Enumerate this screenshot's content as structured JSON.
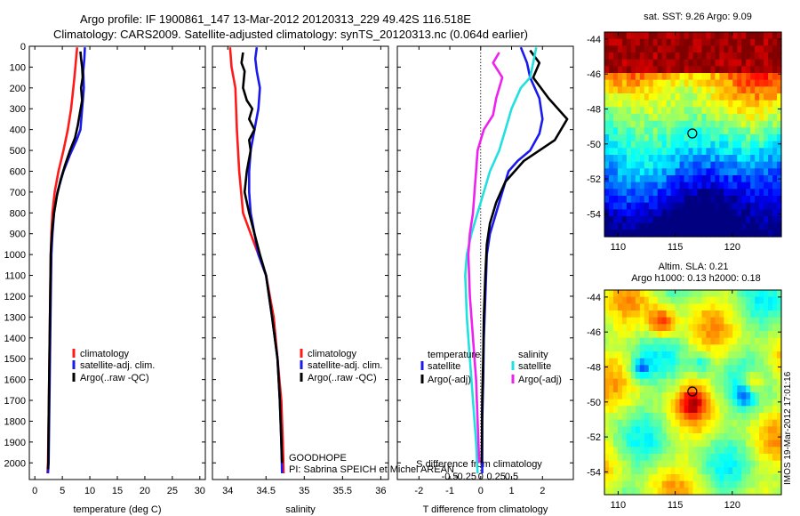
{
  "header": {
    "line1": "Argo profile: IF 1900861_147 13-Mar-2012 20120313_229 49.42S 116.518E",
    "line2": "Climatology: CARS2009. Satellite-adjusted climatology: synTS_20120313.nc (0.064d earlier)"
  },
  "annotations": {
    "project": "GOODHOPE",
    "pi": "PI: Sabrina SPEICH et Michel AREAN",
    "credit": "IMOS 19-Mar-2012 17:01:16"
  },
  "colors": {
    "climatology": "#ff1a1a",
    "satellite": "#1a1aee",
    "argo": "#000000",
    "sal_satellite": "#22e0e0",
    "sal_argo": "#ee22ee"
  },
  "chart_data": [
    {
      "type": "line",
      "id": "temperature",
      "xlabel": "temperature (deg C)",
      "xlim": [
        -1,
        31
      ],
      "ylim": [
        2080,
        0
      ],
      "xticks": [
        0,
        5,
        10,
        15,
        20,
        25,
        30
      ],
      "yticks": [
        0,
        100,
        200,
        300,
        400,
        500,
        600,
        700,
        800,
        900,
        1000,
        1100,
        1200,
        1300,
        1400,
        1500,
        1600,
        1700,
        1800,
        1900,
        2000
      ],
      "legend": [
        "climatology",
        "satellite-adj. clim.",
        "Argo(..raw -QC)"
      ],
      "series": [
        {
          "name": "climatology",
          "color": "#ff1a1a",
          "points": [
            [
              7.7,
              5
            ],
            [
              7.5,
              60
            ],
            [
              7.3,
              120
            ],
            [
              7.0,
              200
            ],
            [
              6.6,
              300
            ],
            [
              6.0,
              400
            ],
            [
              5.2,
              500
            ],
            [
              4.3,
              600
            ],
            [
              3.6,
              700
            ],
            [
              3.2,
              800
            ],
            [
              3.0,
              900
            ],
            [
              2.9,
              1000
            ],
            [
              2.8,
              1200
            ],
            [
              2.7,
              1400
            ],
            [
              2.6,
              1600
            ],
            [
              2.5,
              1800
            ],
            [
              2.4,
              2000
            ],
            [
              2.3,
              2050
            ]
          ]
        },
        {
          "name": "satellite-adj. clim.",
          "color": "#1a1aee",
          "points": [
            [
              9.1,
              5
            ],
            [
              9.0,
              60
            ],
            [
              8.8,
              120
            ],
            [
              8.9,
              200
            ],
            [
              8.6,
              300
            ],
            [
              8.3,
              400
            ],
            [
              7.6,
              450
            ],
            [
              6.4,
              520
            ],
            [
              5.2,
              600
            ],
            [
              4.1,
              700
            ],
            [
              3.5,
              800
            ],
            [
              3.2,
              900
            ],
            [
              3.0,
              1000
            ],
            [
              2.9,
              1200
            ],
            [
              2.8,
              1400
            ],
            [
              2.7,
              1600
            ],
            [
              2.6,
              1800
            ],
            [
              2.5,
              2000
            ],
            [
              2.4,
              2050
            ]
          ]
        },
        {
          "name": "Argo(..raw -QC)",
          "color": "#000000",
          "points": [
            [
              8.3,
              25
            ],
            [
              8.4,
              60
            ],
            [
              8.6,
              100
            ],
            [
              8.7,
              150
            ],
            [
              8.4,
              200
            ],
            [
              8.6,
              260
            ],
            [
              8.2,
              320
            ],
            [
              7.8,
              380
            ],
            [
              7.3,
              440
            ],
            [
              6.4,
              500
            ],
            [
              5.5,
              570
            ],
            [
              4.7,
              640
            ],
            [
              4.0,
              720
            ],
            [
              3.5,
              800
            ],
            [
              3.1,
              900
            ],
            [
              2.9,
              1000
            ],
            [
              2.8,
              1200
            ],
            [
              2.7,
              1400
            ],
            [
              2.6,
              1600
            ],
            [
              2.5,
              1800
            ],
            [
              2.45,
              2000
            ],
            [
              2.4,
              2030
            ]
          ]
        }
      ]
    },
    {
      "type": "line",
      "id": "salinity",
      "xlabel": "salinity",
      "xlim": [
        33.8,
        36.1
      ],
      "ylim": [
        2080,
        0
      ],
      "xticks": [
        34,
        34.5,
        35,
        35.5,
        36
      ],
      "legend": [
        "climatology",
        "satellite-adj. clim.",
        "Argo(..raw -QC)"
      ],
      "series": [
        {
          "name": "climatology",
          "color": "#ff1a1a",
          "points": [
            [
              34.03,
              5
            ],
            [
              34.05,
              100
            ],
            [
              34.1,
              200
            ],
            [
              34.12,
              400
            ],
            [
              34.15,
              600
            ],
            [
              34.2,
              800
            ],
            [
              34.3,
              900
            ],
            [
              34.4,
              1000
            ],
            [
              34.5,
              1100
            ],
            [
              34.6,
              1300
            ],
            [
              34.65,
              1500
            ],
            [
              34.7,
              1700
            ],
            [
              34.72,
              1900
            ],
            [
              34.73,
              2050
            ]
          ]
        },
        {
          "name": "satellite-adj. clim.",
          "color": "#1a1aee",
          "points": [
            [
              34.38,
              5
            ],
            [
              34.36,
              60
            ],
            [
              34.38,
              120
            ],
            [
              34.42,
              200
            ],
            [
              34.4,
              300
            ],
            [
              34.35,
              400
            ],
            [
              34.3,
              500
            ],
            [
              34.28,
              600
            ],
            [
              34.28,
              700
            ],
            [
              34.3,
              800
            ],
            [
              34.35,
              900
            ],
            [
              34.4,
              1000
            ],
            [
              34.5,
              1100
            ],
            [
              34.58,
              1300
            ],
            [
              34.65,
              1500
            ],
            [
              34.68,
              1700
            ],
            [
              34.7,
              1900
            ],
            [
              34.71,
              2050
            ]
          ]
        },
        {
          "name": "Argo(..raw -QC)",
          "color": "#000000",
          "points": [
            [
              34.2,
              30
            ],
            [
              34.18,
              80
            ],
            [
              34.22,
              120
            ],
            [
              34.2,
              200
            ],
            [
              34.25,
              260
            ],
            [
              34.32,
              300
            ],
            [
              34.28,
              350
            ],
            [
              34.35,
              400
            ],
            [
              34.28,
              450
            ],
            [
              34.3,
              500
            ],
            [
              34.25,
              600
            ],
            [
              34.22,
              700
            ],
            [
              34.28,
              800
            ],
            [
              34.35,
              900
            ],
            [
              34.42,
              1000
            ],
            [
              34.5,
              1100
            ],
            [
              34.58,
              1300
            ],
            [
              34.65,
              1500
            ],
            [
              34.68,
              1700
            ],
            [
              34.7,
              1900
            ],
            [
              34.71,
              2000
            ]
          ]
        }
      ]
    },
    {
      "type": "line",
      "id": "difference",
      "xlabel": "T difference from climatology",
      "xlabel2": "S difference from climatology",
      "xlim": [
        -2.7,
        3.0
      ],
      "ylim": [
        2080,
        0
      ],
      "xticks": [
        -2,
        -1,
        0,
        1,
        2
      ],
      "xticks2": [
        -0.5,
        -0.25,
        0,
        0.25,
        0.5
      ],
      "xticks2_labels": [
        "-0.5",
        "-0.25",
        "0",
        "0.25",
        "0.5"
      ],
      "legend_headers": [
        "temperature",
        "salinity"
      ],
      "legend": [
        "satellite",
        "Argo(-adj)",
        "satellite",
        "Argo(-adj)"
      ],
      "series": [
        {
          "name": "satellite",
          "color": "#1a1aee",
          "points": [
            [
              1.3,
              5
            ],
            [
              1.5,
              80
            ],
            [
              1.6,
              150
            ],
            [
              1.9,
              250
            ],
            [
              2.0,
              350
            ],
            [
              1.9,
              420
            ],
            [
              1.6,
              500
            ],
            [
              1.2,
              550
            ],
            [
              0.9,
              600
            ],
            [
              0.7,
              700
            ],
            [
              0.5,
              800
            ],
            [
              0.3,
              900
            ],
            [
              0.2,
              1000
            ],
            [
              0.15,
              1200
            ],
            [
              0.1,
              1400
            ],
            [
              0.08,
              1600
            ],
            [
              0.05,
              1800
            ],
            [
              0.05,
              2000
            ],
            [
              0.05,
              2050
            ]
          ]
        },
        {
          "name": "Argo(-adj)",
          "color": "#000000",
          "points": [
            [
              1.6,
              20
            ],
            [
              1.9,
              80
            ],
            [
              1.7,
              150
            ],
            [
              2.2,
              250
            ],
            [
              2.8,
              350
            ],
            [
              2.4,
              450
            ],
            [
              1.4,
              550
            ],
            [
              0.8,
              650
            ],
            [
              0.5,
              750
            ],
            [
              0.3,
              850
            ],
            [
              0.2,
              950
            ],
            [
              0.15,
              1100
            ],
            [
              0.1,
              1300
            ],
            [
              0.08,
              1500
            ],
            [
              0.05,
              1700
            ],
            [
              0.04,
              1900
            ],
            [
              0.03,
              2000
            ]
          ]
        },
        {
          "name": "satellite",
          "color": "#22e0e0",
          "points": [
            [
              1.8,
              5
            ],
            [
              1.7,
              80
            ],
            [
              1.6,
              150
            ],
            [
              1.3,
              200
            ],
            [
              1.0,
              300
            ],
            [
              0.8,
              400
            ],
            [
              0.6,
              500
            ],
            [
              0.3,
              600
            ],
            [
              0.1,
              700
            ],
            [
              -0.1,
              800
            ],
            [
              -0.3,
              900
            ],
            [
              -0.45,
              1000
            ],
            [
              -0.5,
              1100
            ],
            [
              -0.45,
              1300
            ],
            [
              -0.35,
              1500
            ],
            [
              -0.25,
              1700
            ],
            [
              -0.15,
              1900
            ],
            [
              -0.1,
              2050
            ]
          ]
        },
        {
          "name": "Argo(-adj)",
          "color": "#ee22ee",
          "points": [
            [
              0.6,
              30
            ],
            [
              0.4,
              80
            ],
            [
              0.7,
              150
            ],
            [
              0.5,
              250
            ],
            [
              0.4,
              330
            ],
            [
              0.1,
              400
            ],
            [
              -0.1,
              500
            ],
            [
              -0.15,
              600
            ],
            [
              -0.2,
              700
            ],
            [
              -0.25,
              800
            ],
            [
              -0.35,
              900
            ],
            [
              -0.4,
              1000
            ],
            [
              -0.35,
              1200
            ],
            [
              -0.25,
              1400
            ],
            [
              -0.15,
              1600
            ],
            [
              -0.1,
              1800
            ],
            [
              -0.05,
              2000
            ]
          ]
        }
      ]
    },
    {
      "type": "heatmap",
      "id": "sst-map",
      "title": "sat. SST: 9.26 Argo: 9.09",
      "xlim": [
        108.8,
        124.3
      ],
      "ylim": [
        -55.3,
        -43.6
      ],
      "xticks": [
        110,
        115,
        120
      ],
      "yticks": [
        -44,
        -46,
        -48,
        -50,
        -52,
        -54
      ],
      "marker": [
        116.5,
        -49.4
      ]
    },
    {
      "type": "heatmap",
      "id": "sla-map",
      "title": "Altim. SLA: 0.21",
      "subtitle": "Argo h1000: 0.13 h2000: 0.18",
      "xlim": [
        108.8,
        124.3
      ],
      "ylim": [
        -55.3,
        -43.6
      ],
      "xticks": [
        110,
        115,
        120
      ],
      "yticks": [
        -44,
        -46,
        -48,
        -50,
        -52,
        -54
      ],
      "marker": [
        116.5,
        -49.4
      ]
    }
  ]
}
